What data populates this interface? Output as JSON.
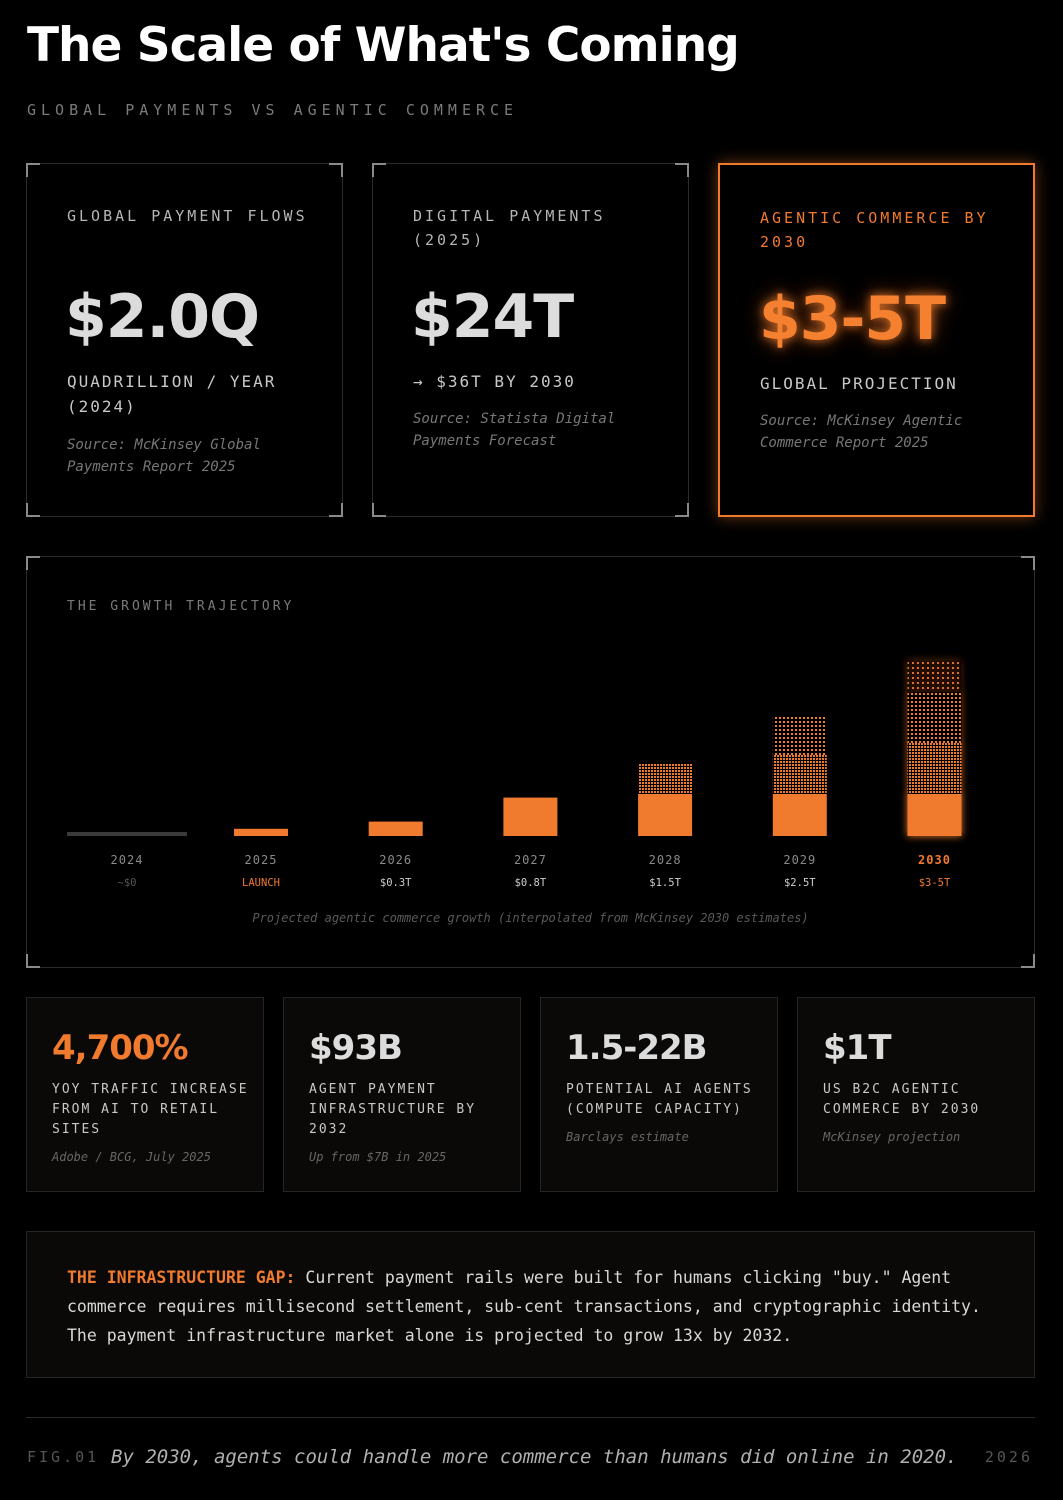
{
  "header": {
    "title": "The Scale of What's Coming",
    "subtitle": "GLOBAL PAYMENTS VS AGENTIC COMMERCE"
  },
  "cards": [
    {
      "label": "GLOBAL PAYMENT FLOWS",
      "value": "$2.0Q",
      "desc": "QUADRILLION / YEAR (2024)",
      "source": "Source: McKinsey Global Payments Report 2025"
    },
    {
      "label": "DIGITAL PAYMENTS (2025)",
      "value": "$24T",
      "desc": "→ $36T BY 2030",
      "source": "Source: Statista Digital Payments Forecast"
    },
    {
      "label": "AGENTIC COMMERCE BY 2030",
      "value": "$3-5T",
      "desc": "GLOBAL PROJECTION",
      "source": "Source: McKinsey Agentic Commerce Report 2025",
      "highlight": true
    }
  ],
  "chart_data": {
    "type": "bar",
    "title": "THE GROWTH TRAJECTORY",
    "note": "Projected agentic commerce growth (interpolated from McKinsey 2030 estimates)",
    "categories": [
      "2024",
      "2025",
      "2026",
      "2027",
      "2028",
      "2029",
      "2030"
    ],
    "value_labels": [
      "~$0",
      "LAUNCH",
      "$0.3T",
      "$0.8T",
      "$1.5T",
      "$2.5T",
      "$3-5T"
    ],
    "values": [
      0,
      0.15,
      0.3,
      0.8,
      1.5,
      2.5,
      3.0
    ],
    "ranges": [
      null,
      null,
      [
        0.3,
        0.3
      ],
      [
        0.8,
        0.8
      ],
      [
        1.5,
        1.5
      ],
      [
        2.5,
        2.5
      ],
      [
        3.0,
        5.0
      ]
    ],
    "highlight_category": "2030",
    "colors": {
      "bar": "#f07a2e",
      "baseline": "#3a3a3a",
      "label": "#8a8a8a",
      "highlight": "#f07a2e"
    }
  },
  "metrics": [
    {
      "value": "4,700%",
      "desc": "YOY TRAFFIC INCREASE FROM AI TO RETAIL SITES",
      "source": "Adobe / BCG, July 2025",
      "accent": true
    },
    {
      "value": "$93B",
      "desc": "AGENT PAYMENT INFRASTRUCTURE BY 2032",
      "source": "Up from $7B in 2025"
    },
    {
      "value": "1.5-22B",
      "desc": "POTENTIAL AI AGENTS (COMPUTE CAPACITY)",
      "source": "Barclays estimate"
    },
    {
      "value": "$1T",
      "desc": "US B2C AGENTIC COMMERCE BY 2030",
      "source": "McKinsey projection"
    }
  ],
  "gap": {
    "heading": "THE INFRASTRUCTURE GAP:",
    "text": " Current payment rails were built for humans clicking \"buy.\" Agent commerce requires millisecond settlement, sub-cent transactions, and cryptographic identity. The payment infrastructure market alone is projected to grow 13x by 2032."
  },
  "footer": {
    "fig": "FIG.01",
    "caption": "By 2030, agents could handle more commerce than humans did online in 2020.",
    "year": "2026"
  },
  "colors": {
    "accent": "#f07a2e",
    "background": "#000000"
  }
}
